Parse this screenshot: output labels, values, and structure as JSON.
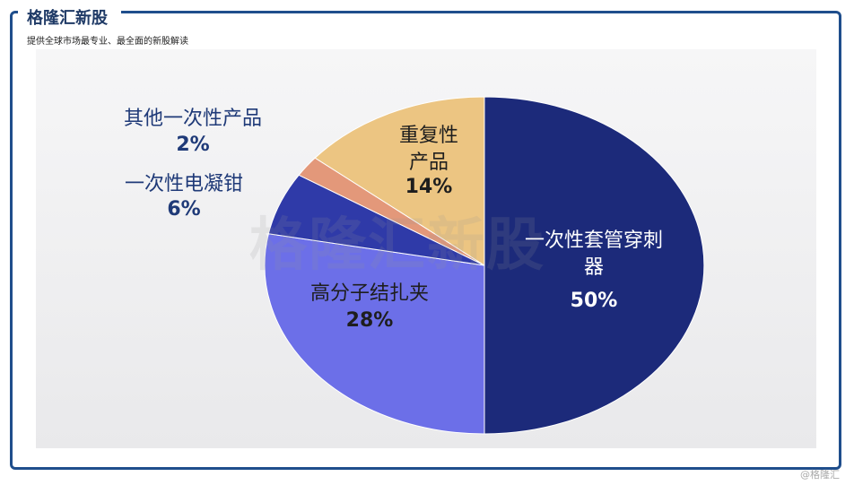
{
  "header": {
    "brand": "格隆汇新股",
    "tagline": "提供全球市场最专业、最全面的新股解读"
  },
  "watermark": "格隆汇新股",
  "credit": "@格隆汇",
  "colors": {
    "frame": "#1f4e8c",
    "slice_catheter": "#1c2a7a",
    "slice_clip": "#6c6fe8",
    "slice_clamp": "#2f3aa8",
    "slice_other": "#e3987a",
    "slice_reusable": "#ecc582"
  },
  "chart_data": {
    "type": "pie",
    "title": "",
    "start_angle_deg": 0,
    "direction": "clockwise",
    "slices": [
      {
        "label": "一次性套管穿刺器",
        "value": 50,
        "display": "50%",
        "color": "#1c2a7a",
        "text_color": "#ffffff"
      },
      {
        "label": "高分子结扎夹",
        "value": 28,
        "display": "28%",
        "color": "#6c6fe8",
        "text_color": "#1e1e1e"
      },
      {
        "label": "一次性电凝钳",
        "value": 6,
        "display": "6%",
        "color": "#2f3aa8",
        "text_color": "#1f3a78"
      },
      {
        "label": "其他一次性产品",
        "value": 2,
        "display": "2%",
        "color": "#e3987a",
        "text_color": "#1f3a78"
      },
      {
        "label": "重复性产品",
        "value": 14,
        "display": "14%",
        "color": "#ecc582",
        "text_color": "#1e1e1e"
      }
    ]
  }
}
